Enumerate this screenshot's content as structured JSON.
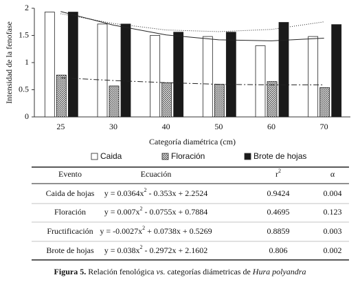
{
  "chart_data": {
    "type": "bar",
    "y_label": "Intensidad de la fenofase",
    "x_label": "Categoría diamétrica (cm)",
    "categories": [
      "25",
      "30",
      "40",
      "50",
      "60",
      "70"
    ],
    "series": [
      {
        "name": "Caida",
        "color": "#ffffff",
        "values": [
          1.93,
          1.71,
          1.5,
          1.48,
          1.31,
          1.48
        ]
      },
      {
        "name": "Floración",
        "color": "#888888",
        "values": [
          0.77,
          0.57,
          0.63,
          0.6,
          0.65,
          0.54
        ]
      },
      {
        "name": "Brote de hojas",
        "color": "#1a1a1a",
        "values": [
          1.93,
          1.71,
          1.56,
          1.56,
          1.74,
          1.7
        ]
      }
    ],
    "trendlines": [
      {
        "style": "solid",
        "values": [
          1.94,
          1.69,
          1.51,
          1.42,
          1.4,
          1.45
        ]
      },
      {
        "style": "dash-dot",
        "values": [
          0.72,
          0.67,
          0.63,
          0.6,
          0.59,
          0.59
        ]
      },
      {
        "style": "dotted",
        "values": [
          1.9,
          1.72,
          1.6,
          1.57,
          1.61,
          1.75
        ]
      }
    ],
    "ylim": [
      0,
      2
    ],
    "yticks": [
      0,
      0.5,
      1,
      1.5,
      2
    ]
  },
  "table": {
    "header": [
      "Evento",
      "Ecuación",
      [
        "r",
        "2"
      ],
      "α"
    ],
    "rows": [
      [
        "Caida de hojas",
        [
          "y = 0.0364x",
          "2",
          " - 0.353x + 2.2524"
        ],
        "0.9424",
        "0.004"
      ],
      [
        "Floración",
        [
          "y = 0.007x",
          "2",
          " - 0.0755x + 0.7884"
        ],
        "0.4695",
        "0.123"
      ],
      [
        "Fructificación",
        [
          "y = -0.0027x",
          "2",
          " + 0.0738x + 0.5269"
        ],
        "0.8859",
        "0.003"
      ],
      [
        "Brote de hojas",
        [
          "y = 0.038x",
          "2",
          " - 0.2972x + 2.1602"
        ],
        "0.806",
        "0.002"
      ]
    ]
  },
  "caption": [
    "Figura 5.",
    " Relación fenológica ",
    "vs.",
    " categorías diámetricas de ",
    "Hura polyandra"
  ]
}
